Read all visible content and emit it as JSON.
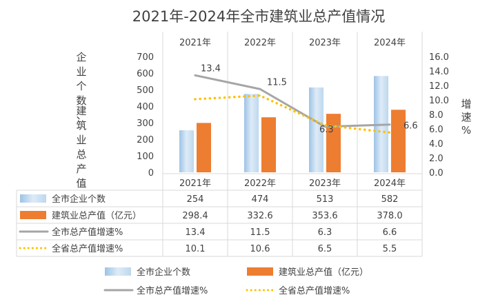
{
  "chart_data": {
    "type": "bar",
    "title": "2021年-2024年全市建筑业总产值情况",
    "categories": [
      "2021年",
      "2022年",
      "2023年",
      "2024年"
    ],
    "ylabel_left": "企业个数、建筑业总产值",
    "ylabel_right": "增速%",
    "ylim_left": [
      0,
      700
    ],
    "yticks_left": [
      "0",
      "100",
      "200",
      "300",
      "400",
      "500",
      "600",
      "700"
    ],
    "ylim_right": [
      0,
      16
    ],
    "yticks_right": [
      "0.0",
      "2.0",
      "4.0",
      "6.0",
      "8.0",
      "10.0",
      "12.0",
      "14.0",
      "16.0"
    ],
    "series": [
      {
        "name": "全市企业个数",
        "kind": "bar",
        "axis": "left",
        "color": "#bdd7ee",
        "values": [
          254,
          474,
          513,
          582
        ],
        "labels": [
          "254",
          "474",
          "513",
          "582"
        ]
      },
      {
        "name": "建筑业总产值（亿元）",
        "kind": "bar",
        "axis": "left",
        "color": "#ed7d31",
        "values": [
          298.4,
          332.6,
          353.6,
          378.0
        ],
        "labels": [
          "298.4",
          "332.6",
          "353.6",
          "378.0"
        ]
      },
      {
        "name": "全市总产值增速%",
        "kind": "line",
        "axis": "right",
        "color": "#a5a5a5",
        "values": [
          13.4,
          11.5,
          6.3,
          6.6
        ],
        "labels": [
          "13.4",
          "11.5",
          "6.3",
          "6.6"
        ]
      },
      {
        "name": "全省总产值增速%",
        "kind": "line-dotted",
        "axis": "right",
        "color": "#ffc000",
        "values": [
          10.1,
          10.6,
          6.5,
          5.5
        ],
        "labels": [
          "10.1",
          "10.6",
          "6.5",
          "5.5"
        ]
      }
    ],
    "grid": false,
    "data_table": true,
    "legend_position": "bottom"
  }
}
